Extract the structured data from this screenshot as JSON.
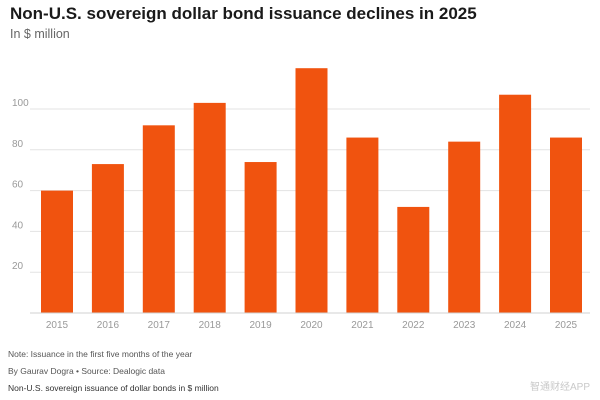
{
  "header": {
    "title": "Non-U.S. sovereign dollar bond issuance declines in 2025",
    "subtitle": "In $ million"
  },
  "footer": {
    "note": "Note: Issuance in the first five months of the year",
    "byline": "By Gaurav Dogra • Source: Dealogic data",
    "caption": "Non-U.S. sovereign issuance of dollar bonds in $ million",
    "watermark": "智通财经APP"
  },
  "colors": {
    "bar": "#f0530f",
    "grid": "#e3e3e3",
    "axis_text": "#999999"
  },
  "chart_data": {
    "type": "bar",
    "title": "Non-U.S. sovereign dollar bond issuance declines in 2025",
    "subtitle": "In $ million",
    "xlabel": "",
    "ylabel": "",
    "categories": [
      "2015",
      "2016",
      "2017",
      "2018",
      "2019",
      "2020",
      "2021",
      "2022",
      "2023",
      "2024",
      "2025"
    ],
    "values": [
      60,
      73,
      92,
      103,
      74,
      120,
      86,
      52,
      84,
      107,
      86
    ],
    "ylim": [
      0,
      125
    ],
    "yticks": [
      20,
      40,
      60,
      80,
      100
    ],
    "grid": true,
    "legend": "none"
  }
}
